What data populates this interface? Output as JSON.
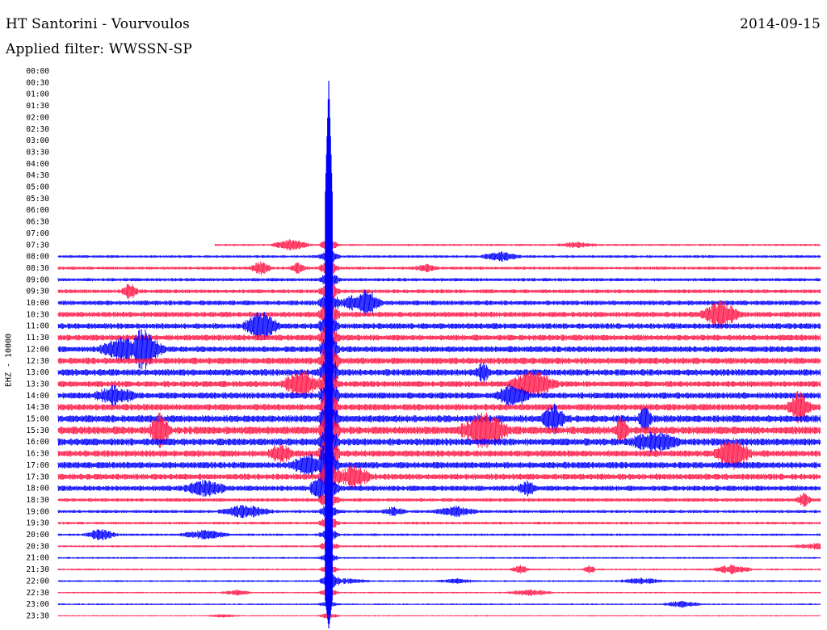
{
  "header": {
    "station": "HT Santorini - Vourvoulos",
    "date": "2014-09-15",
    "filter": "Applied filter: WWSSN-SP"
  },
  "chart_data": {
    "type": "line",
    "title": "HT Santorini - Vourvoulos",
    "ylabel": "EHZ - 10000",
    "time_labels": [
      "00:00",
      "00:30",
      "01:00",
      "01:30",
      "02:00",
      "02:30",
      "03:00",
      "03:30",
      "04:00",
      "04:30",
      "05:00",
      "05:30",
      "06:00",
      "06:30",
      "07:00",
      "07:30",
      "08:00",
      "08:30",
      "09:00",
      "09:30",
      "10:00",
      "10:30",
      "11:00",
      "11:30",
      "12:00",
      "12:30",
      "13:00",
      "13:30",
      "14:00",
      "14:30",
      "15:00",
      "15:30",
      "16:00",
      "16:30",
      "17:00",
      "17:30",
      "18:00",
      "18:30",
      "19:00",
      "19:30",
      "20:00",
      "20:30",
      "21:00",
      "21:30",
      "22:00",
      "22:30",
      "23:00",
      "23:30"
    ],
    "first_data_row": "07:30",
    "trace_start_fraction_0730": 0.21,
    "row_amplitude_relative": [
      0,
      0,
      0,
      0,
      0,
      0,
      0,
      0,
      0,
      0,
      0,
      0,
      0,
      0,
      0,
      0.35,
      0.45,
      0.5,
      0.55,
      0.65,
      0.8,
      0.9,
      0.95,
      1.0,
      1.0,
      1.1,
      1.1,
      1.0,
      1.05,
      1.1,
      1.2,
      1.3,
      1.2,
      1.1,
      1.1,
      1.0,
      0.9,
      0.6,
      0.5,
      0.45,
      0.4,
      0.35,
      0.3,
      0.3,
      0.3,
      0.25,
      0.25,
      0.2
    ],
    "event_fraction_of_hour": 0.355,
    "colors": {
      "even_row": "#0000ff",
      "odd_row": "#ff1a4a"
    }
  }
}
